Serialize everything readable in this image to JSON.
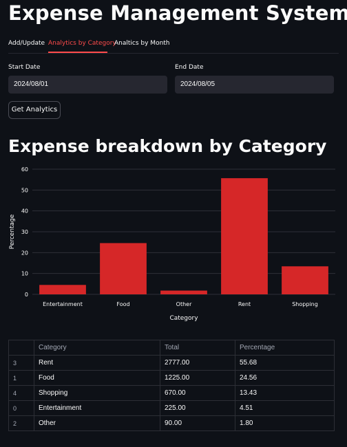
{
  "app": {
    "title": "Expense Management System"
  },
  "tabs": [
    {
      "label": "Add/Update",
      "active": false
    },
    {
      "label": "Analytics by Category",
      "active": true
    },
    {
      "label": "Analtics by Month",
      "active": false
    }
  ],
  "form": {
    "start_label": "Start Date",
    "start_value": "2024/08/01",
    "end_label": "End Date",
    "end_value": "2024/08/05",
    "button_label": "Get Analytics"
  },
  "section": {
    "title": "Expense breakdown by Category"
  },
  "chart_data": {
    "type": "bar",
    "categories": [
      "Entertainment",
      "Food",
      "Other",
      "Rent",
      "Shopping"
    ],
    "values": [
      4.51,
      24.56,
      1.8,
      55.68,
      13.43
    ],
    "xlabel": "Category",
    "ylabel": "Percentage",
    "yticks": [
      0,
      10,
      20,
      30,
      40,
      50,
      60
    ],
    "ylim": [
      0,
      60
    ],
    "bar_color": "#d62728",
    "grid": true
  },
  "table": {
    "headers": [
      "",
      "Category",
      "Total",
      "Percentage"
    ],
    "rows": [
      {
        "index": "3",
        "category": "Rent",
        "total": "2777.00",
        "percentage": "55.68"
      },
      {
        "index": "1",
        "category": "Food",
        "total": "1225.00",
        "percentage": "24.56"
      },
      {
        "index": "4",
        "category": "Shopping",
        "total": "670.00",
        "percentage": "13.43"
      },
      {
        "index": "0",
        "category": "Entertainment",
        "total": "225.00",
        "percentage": "4.51"
      },
      {
        "index": "2",
        "category": "Other",
        "total": "90.00",
        "percentage": "1.80"
      }
    ]
  },
  "colors": {
    "accent": "#ff4b4b",
    "background": "#0e1117",
    "input_bg": "#262730"
  }
}
